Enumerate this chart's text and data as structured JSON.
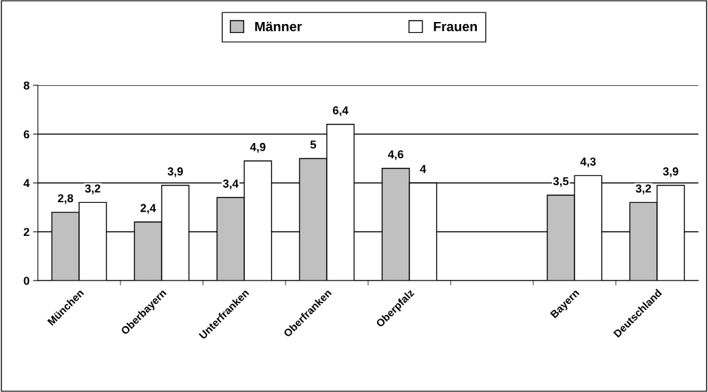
{
  "chart_data": {
    "type": "bar",
    "categories": [
      "München",
      "Oberbayern",
      "Unterfranken",
      "Oberfranken",
      "Oberpfalz",
      null,
      "Bayern",
      "Deutschland"
    ],
    "series": [
      {
        "name": "Männer",
        "color": "#c0c0c0",
        "values": [
          2.8,
          2.4,
          3.4,
          5,
          4.6,
          null,
          3.5,
          3.2
        ],
        "value_labels": [
          "2,8",
          "2,4",
          "3,4",
          "5",
          "4,6",
          null,
          "3,5",
          "3,2"
        ]
      },
      {
        "name": "Frauen",
        "color": "#ffffff",
        "values": [
          3.2,
          3.9,
          4.9,
          6.4,
          4,
          null,
          4.3,
          3.9
        ],
        "value_labels": [
          "3,2",
          "3,9",
          "4,9",
          "6,4",
          "4",
          null,
          "4,3",
          "3,9"
        ]
      }
    ],
    "ylim": [
      0,
      8
    ],
    "yticks": [
      0,
      2,
      4,
      6,
      8
    ],
    "grid": "y",
    "legend": "top"
  }
}
